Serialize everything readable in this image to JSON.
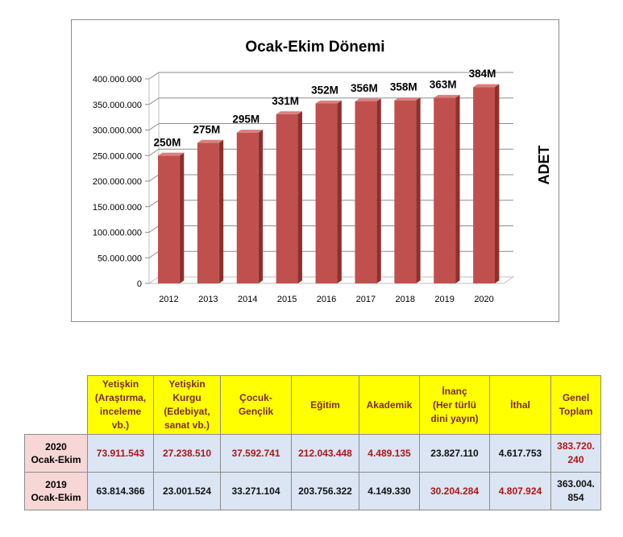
{
  "chart_data": {
    "type": "bar",
    "title": "Ocak-Ekim Dönemi",
    "ylabel": "ADET",
    "xlabel": "",
    "categories": [
      "2012",
      "2013",
      "2014",
      "2015",
      "2016",
      "2017",
      "2018",
      "2019",
      "2020"
    ],
    "values": [
      250000000,
      275000000,
      295000000,
      331000000,
      352000000,
      356000000,
      358000000,
      363000000,
      384000000
    ],
    "data_labels": [
      "250M",
      "275M",
      "295M",
      "331M",
      "352M",
      "356M",
      "358M",
      "363M",
      "384M"
    ],
    "ylim": [
      0,
      400000000
    ],
    "yticks": [
      "0",
      "50.000.000",
      "100.000.000",
      "150.000.000",
      "200.000.000",
      "250.000.000",
      "300.000.000",
      "350.000.000",
      "400.000.000"
    ],
    "grid": true,
    "bar_color": "#c0504d",
    "bar_side_color": "#8e2f2d",
    "bar_top_color": "#d9807d"
  },
  "table": {
    "headers": [
      "Yetişkin (Araştırma, inceleme vb.)",
      "Yetişkin Kurgu (Edebiyat, sanat vb.)",
      "Çocuk-Gençlik",
      "Eğitim",
      "Akademik",
      "İnanç (Her türlü dini yayın)",
      "İthal",
      "Genel Toplam"
    ],
    "header_lines": [
      [
        "Yetişkin",
        "(Araştırma,",
        "inceleme",
        "vb.)"
      ],
      [
        "Yetişkin",
        "Kurgu",
        "(Edebiyat,",
        "sanat vb.)"
      ],
      [
        "Çocuk-",
        "Gençlik"
      ],
      [
        "Eğitim"
      ],
      [
        "Akademik"
      ],
      [
        "İnanç",
        "(Her türlü",
        "dini yayın)"
      ],
      [
        "İthal"
      ],
      [
        "Genel",
        "Toplam"
      ]
    ],
    "rows": [
      {
        "label_lines": [
          "2020",
          "Ocak-Ekim"
        ],
        "cells": [
          "73.911.543",
          "27.238.510",
          "37.592.741",
          "212.043.448",
          "4.489.135",
          "23.827.110",
          "4.617.753",
          "383.720.240"
        ],
        "last_lines": [
          "383.720.",
          "240"
        ],
        "highlight": [
          true,
          true,
          true,
          true,
          true,
          false,
          false,
          true
        ]
      },
      {
        "label_lines": [
          "2019",
          "Ocak-Ekim"
        ],
        "cells": [
          "63.814.366",
          "23.001.524",
          "33.271.104",
          "203.756.322",
          "4.149.330",
          "30.204.284",
          "4.807.924",
          "363.004.854"
        ],
        "last_lines": [
          "363.004.",
          "854"
        ],
        "highlight": [
          false,
          false,
          false,
          false,
          false,
          true,
          true,
          false
        ]
      }
    ],
    "highlight_color": "#b01515"
  }
}
